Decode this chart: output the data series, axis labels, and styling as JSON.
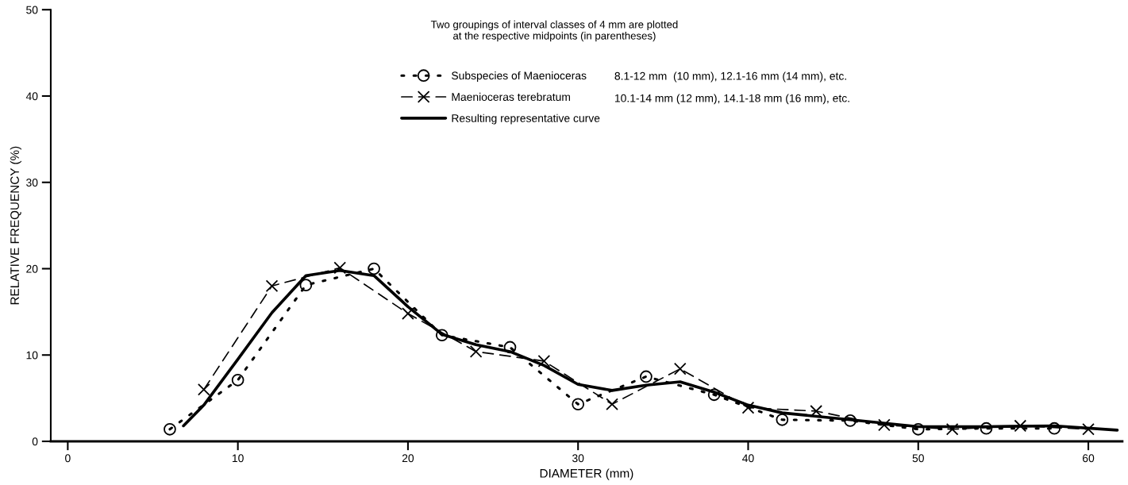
{
  "chart_data": {
    "type": "line",
    "xlabel": "DIAMETER (mm)",
    "ylabel": "RELATIVE FREQUENCY (%)",
    "xlim": [
      -1,
      62
    ],
    "ylim": [
      0,
      50
    ],
    "xticks": [
      0,
      10,
      20,
      30,
      40,
      50,
      60
    ],
    "yticks": [
      0,
      10,
      20,
      30,
      40,
      50
    ],
    "grid": false,
    "legend": "top",
    "annotations": [
      "Two groupings of interval classes of 4 mm are plotted\nat the respective midpoints (in parentheses)",
      "8.1-12 mm  (10 mm), 12.1-16 mm (14 mm), etc.",
      "10.1-14 mm (12 mm), 14.1-18 mm (16 mm), etc."
    ],
    "series": [
      {
        "name": "Subspecies of Maenioceras",
        "color": "#000000",
        "marker": "circle",
        "line_style": "dotted",
        "x": [
          6,
          10,
          14,
          18,
          22,
          26,
          30,
          34,
          38,
          42,
          46,
          50,
          54,
          58
        ],
        "values": [
          1.4,
          7.1,
          18.1,
          20.0,
          12.3,
          10.9,
          4.3,
          7.5,
          5.4,
          2.5,
          2.4,
          1.4,
          1.5,
          1.5
        ]
      },
      {
        "name": "Maenioceras terebratum",
        "color": "#000000",
        "marker": "cross",
        "line_style": "dashed",
        "x": [
          8,
          12,
          16,
          20,
          24,
          28,
          32,
          36,
          40,
          44,
          48,
          52,
          56,
          60
        ],
        "values": [
          6.0,
          18.0,
          20.1,
          14.8,
          10.4,
          9.3,
          4.3,
          8.4,
          3.9,
          3.5,
          1.9,
          1.4,
          1.8,
          1.4
        ]
      },
      {
        "name": "Resulting representative curve",
        "color": "#000000",
        "marker": "none",
        "line_style": "solid",
        "x": [
          6.8,
          8,
          10,
          12,
          14,
          16,
          18,
          20,
          22,
          24,
          26,
          28,
          30,
          32,
          34,
          36,
          38,
          40,
          42,
          46,
          50,
          54,
          58,
          61.7
        ],
        "values": [
          1.8,
          4.2,
          9.5,
          14.9,
          19.2,
          19.8,
          19.2,
          15.6,
          12.4,
          11.2,
          10.4,
          8.8,
          6.6,
          5.9,
          6.5,
          6.9,
          5.7,
          4.2,
          3.3,
          2.5,
          1.7,
          1.7,
          1.8,
          1.3
        ]
      }
    ]
  }
}
